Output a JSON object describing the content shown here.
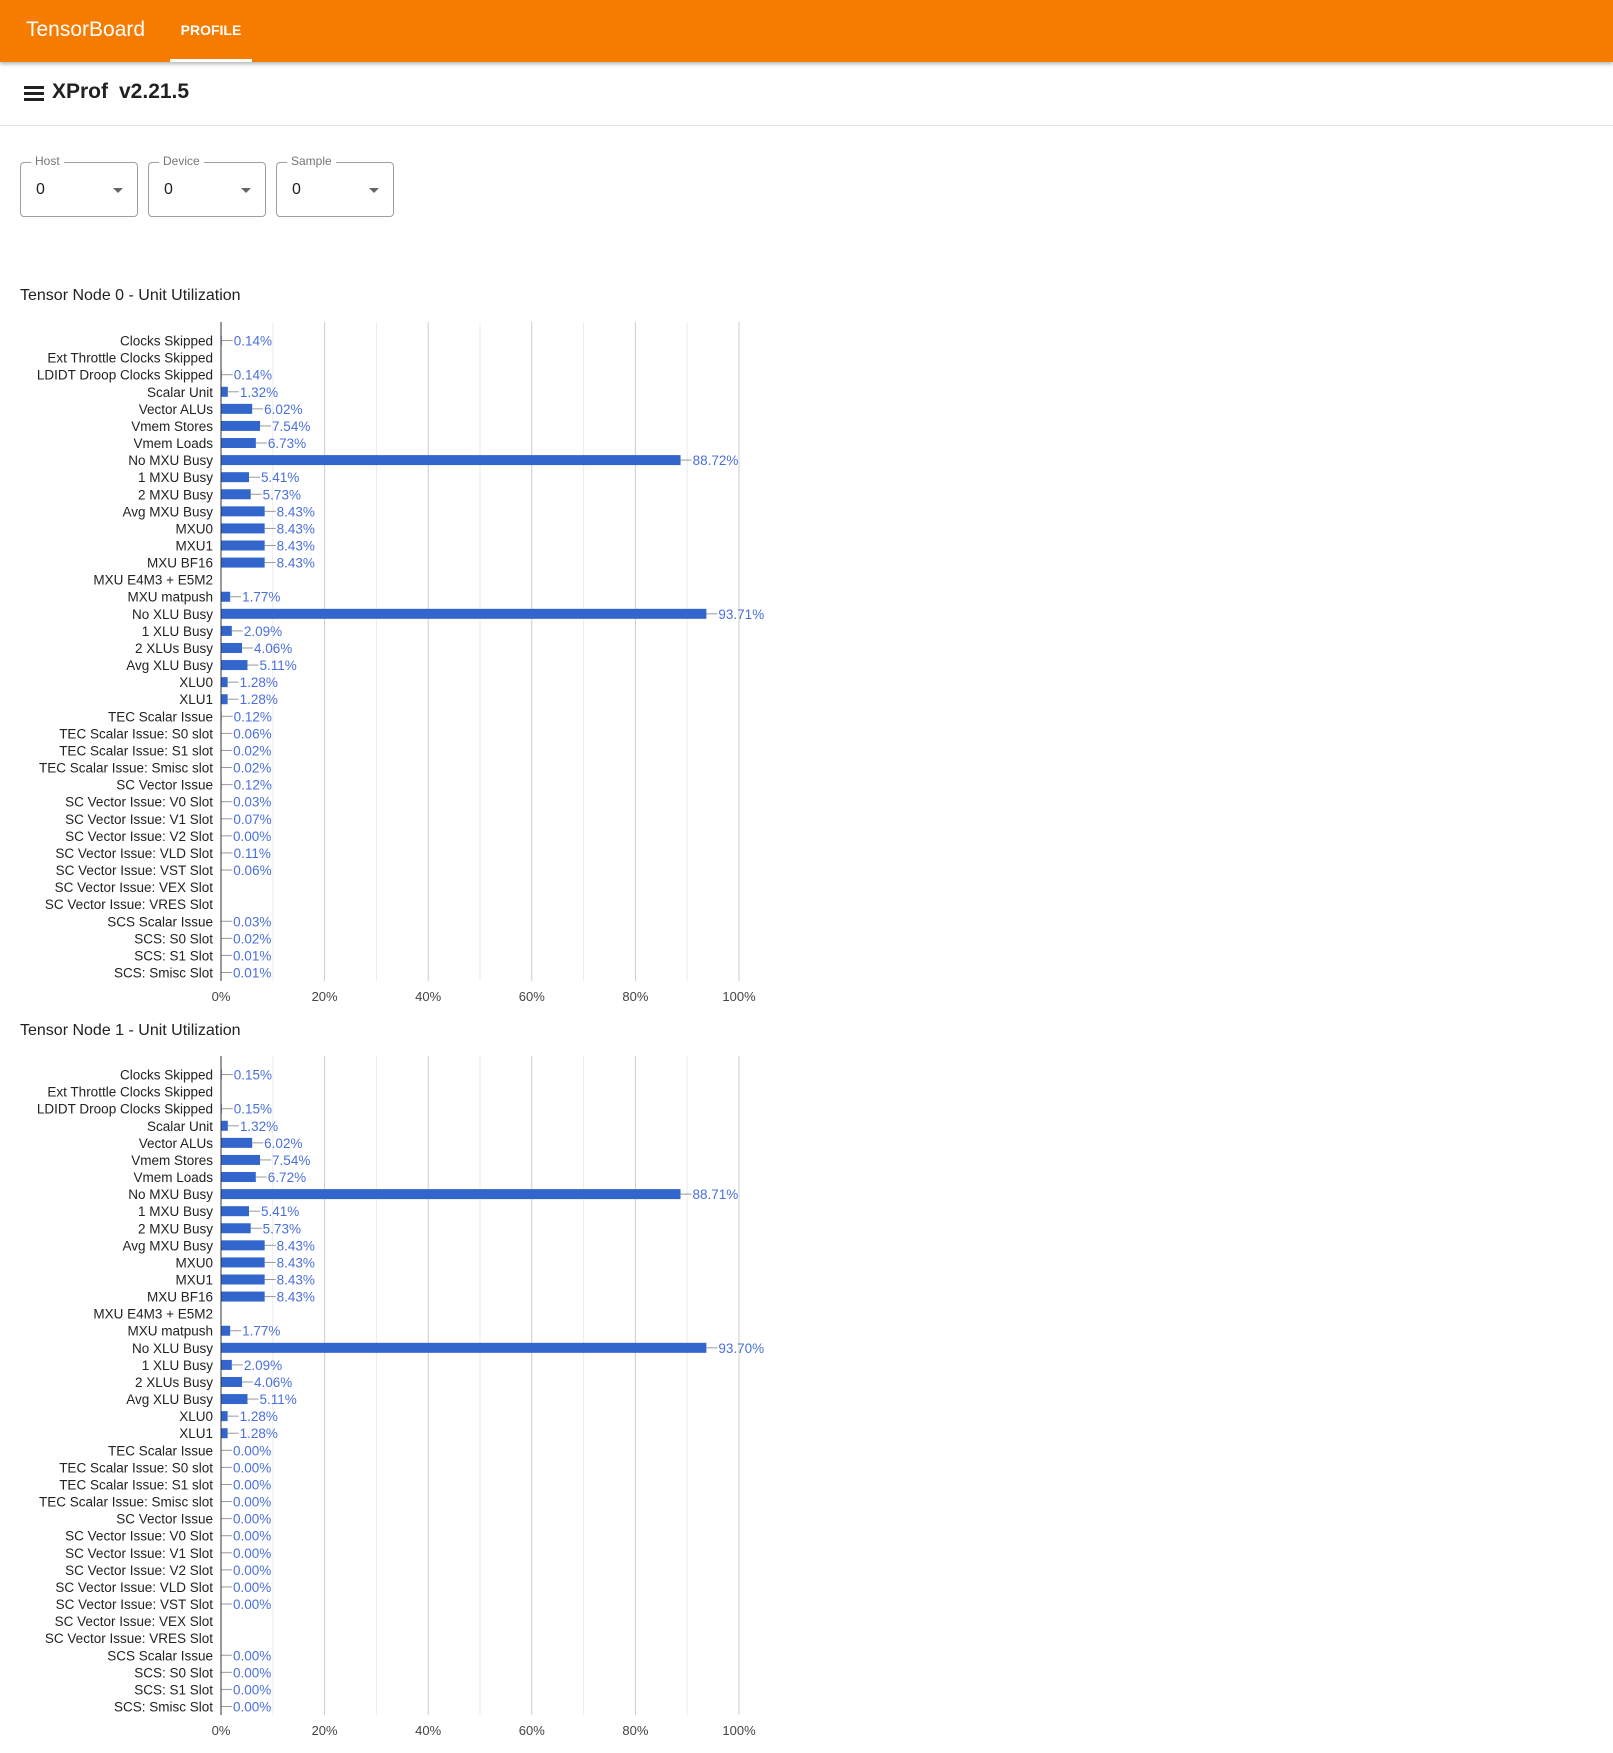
{
  "header": {
    "brand": "TensorBoard",
    "tab": "PROFILE"
  },
  "subheader": {
    "icon": "menu-icon",
    "title": "XProf",
    "version": "v2.21.5"
  },
  "selectors": [
    {
      "label": "Host",
      "value": "0"
    },
    {
      "label": "Device",
      "value": "0"
    },
    {
      "label": "Sample",
      "value": "0"
    }
  ],
  "colors": {
    "accent": "#f57c00",
    "bar": "#3366cc",
    "value_label": "#4a6fdc"
  },
  "chart_data": [
    {
      "type": "bar",
      "orientation": "horizontal",
      "title": "Tensor Node 0 - Unit Utilization",
      "xlim": [
        0,
        100
      ],
      "x_ticks": [
        "0%",
        "20%",
        "40%",
        "60%",
        "80%",
        "100%"
      ],
      "grid": true,
      "categories": [
        "Clocks Skipped",
        "Ext Throttle Clocks Skipped",
        "LDIDT Droop Clocks Skipped",
        "Scalar Unit",
        "Vector ALUs",
        "Vmem Stores",
        "Vmem Loads",
        "No MXU Busy",
        "1 MXU Busy",
        "2 MXU Busy",
        "Avg MXU Busy",
        "MXU0",
        "MXU1",
        "MXU BF16",
        "MXU E4M3 + E5M2",
        "MXU matpush",
        "No XLU Busy",
        "1 XLU Busy",
        "2 XLUs Busy",
        "Avg XLU Busy",
        "XLU0",
        "XLU1",
        "TEC Scalar Issue",
        "TEC Scalar Issue: S0 slot",
        "TEC Scalar Issue: S1 slot",
        "TEC Scalar Issue: Smisc slot",
        "SC Vector Issue",
        "SC Vector Issue: V0 Slot",
        "SC Vector Issue: V1 Slot",
        "SC Vector Issue: V2 Slot",
        "SC Vector Issue: VLD Slot",
        "SC Vector Issue: VST Slot",
        "SC Vector Issue: VEX Slot",
        "SC Vector Issue: VRES Slot",
        "SCS Scalar Issue",
        "SCS: S0 Slot",
        "SCS: S1 Slot",
        "SCS: Smisc Slot"
      ],
      "values": [
        0.14,
        null,
        0.14,
        1.32,
        6.02,
        7.54,
        6.73,
        88.72,
        5.41,
        5.73,
        8.43,
        8.43,
        8.43,
        8.43,
        null,
        1.77,
        93.71,
        2.09,
        4.06,
        5.11,
        1.28,
        1.28,
        0.12,
        0.06,
        0.02,
        0.02,
        0.12,
        0.03,
        0.07,
        0.0,
        0.11,
        0.06,
        null,
        null,
        0.03,
        0.02,
        0.01,
        0.01
      ],
      "labels": [
        "0.14%",
        "",
        "0.14%",
        "1.32%",
        "6.02%",
        "7.54%",
        "6.73%",
        "88.72%",
        "5.41%",
        "5.73%",
        "8.43%",
        "8.43%",
        "8.43%",
        "8.43%",
        "",
        "1.77%",
        "93.71%",
        "2.09%",
        "4.06%",
        "5.11%",
        "1.28%",
        "1.28%",
        "0.12%",
        "0.06%",
        "0.02%",
        "0.02%",
        "0.12%",
        "0.03%",
        "0.07%",
        "0.00%",
        "0.11%",
        "0.06%",
        "",
        "",
        "0.03%",
        "0.02%",
        "0.01%",
        "0.01%"
      ]
    },
    {
      "type": "bar",
      "orientation": "horizontal",
      "title": "Tensor Node 1 - Unit Utilization",
      "xlim": [
        0,
        100
      ],
      "x_ticks": [
        "0%",
        "20%",
        "40%",
        "60%",
        "80%",
        "100%"
      ],
      "grid": true,
      "categories": [
        "Clocks Skipped",
        "Ext Throttle Clocks Skipped",
        "LDIDT Droop Clocks Skipped",
        "Scalar Unit",
        "Vector ALUs",
        "Vmem Stores",
        "Vmem Loads",
        "No MXU Busy",
        "1 MXU Busy",
        "2 MXU Busy",
        "Avg MXU Busy",
        "MXU0",
        "MXU1",
        "MXU BF16",
        "MXU E4M3 + E5M2",
        "MXU matpush",
        "No XLU Busy",
        "1 XLU Busy",
        "2 XLUs Busy",
        "Avg XLU Busy",
        "XLU0",
        "XLU1",
        "TEC Scalar Issue",
        "TEC Scalar Issue: S0 slot",
        "TEC Scalar Issue: S1 slot",
        "TEC Scalar Issue: Smisc slot",
        "SC Vector Issue",
        "SC Vector Issue: V0 Slot",
        "SC Vector Issue: V1 Slot",
        "SC Vector Issue: V2 Slot",
        "SC Vector Issue: VLD Slot",
        "SC Vector Issue: VST Slot",
        "SC Vector Issue: VEX Slot",
        "SC Vector Issue: VRES Slot",
        "SCS Scalar Issue",
        "SCS: S0 Slot",
        "SCS: S1 Slot",
        "SCS: Smisc Slot"
      ],
      "values": [
        0.15,
        null,
        0.15,
        1.32,
        6.02,
        7.54,
        6.72,
        88.71,
        5.41,
        5.73,
        8.43,
        8.43,
        8.43,
        8.43,
        null,
        1.77,
        93.7,
        2.09,
        4.06,
        5.11,
        1.28,
        1.28,
        0.0,
        0.0,
        0.0,
        0.0,
        0.0,
        0.0,
        0.0,
        0.0,
        0.0,
        0.0,
        null,
        null,
        0.0,
        0.0,
        0.0,
        0.0
      ],
      "labels": [
        "0.15%",
        "",
        "0.15%",
        "1.32%",
        "6.02%",
        "7.54%",
        "6.72%",
        "88.71%",
        "5.41%",
        "5.73%",
        "8.43%",
        "8.43%",
        "8.43%",
        "8.43%",
        "",
        "1.77%",
        "93.70%",
        "2.09%",
        "4.06%",
        "5.11%",
        "1.28%",
        "1.28%",
        "0.00%",
        "0.00%",
        "0.00%",
        "0.00%",
        "0.00%",
        "0.00%",
        "0.00%",
        "0.00%",
        "0.00%",
        "0.00%",
        "",
        "",
        "0.00%",
        "0.00%",
        "0.00%",
        "0.00%"
      ]
    }
  ]
}
